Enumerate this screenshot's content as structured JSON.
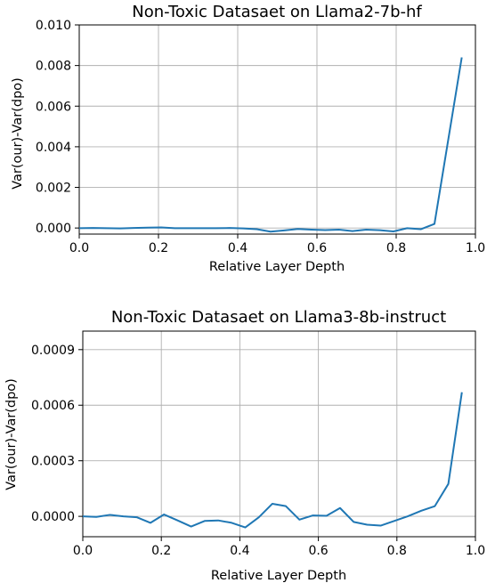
{
  "chart_data": [
    {
      "type": "line",
      "title": "Non-Toxic Datasaet on Llama2-7b-hf",
      "xlabel": "Relative Layer Depth",
      "ylabel": "Var(our)-Var(dpo)",
      "xlim": [
        0.0,
        1.0
      ],
      "ylim": [
        -0.0003,
        0.01
      ],
      "xticks": [
        0.0,
        0.2,
        0.4,
        0.6,
        0.8,
        1.0
      ],
      "xtick_labels": [
        "0.0",
        "0.2",
        "0.4",
        "0.6",
        "0.8",
        "1.0"
      ],
      "yticks": [
        0.0,
        0.002,
        0.004,
        0.006,
        0.008,
        0.01
      ],
      "ytick_labels": [
        "0.000",
        "0.002",
        "0.004",
        "0.006",
        "0.008",
        "0.010"
      ],
      "grid": true,
      "color": "#1f77b4",
      "series": [
        {
          "x": [
            0.0,
            0.0345,
            0.069,
            0.1034,
            0.1379,
            0.1724,
            0.2069,
            0.2414,
            0.2759,
            0.3103,
            0.3448,
            0.3793,
            0.4138,
            0.4483,
            0.4828,
            0.5172,
            0.5517,
            0.5862,
            0.6207,
            0.6552,
            0.6897,
            0.7241,
            0.7586,
            0.7931,
            0.8276,
            0.8621,
            0.8966,
            0.931,
            0.9655
          ],
          "values": [
            -1e-05,
            0.0,
            -1e-05,
            -2e-05,
            0.0,
            2e-05,
            3e-05,
            -1e-05,
            -1e-05,
            -1e-05,
            -1e-05,
            0.0,
            -2e-05,
            -6e-05,
            -0.00018,
            -0.00012,
            -5e-05,
            -8e-05,
            -0.0001,
            -8e-05,
            -0.00015,
            -8e-05,
            -0.00011,
            -0.00017,
            -1e-05,
            -6e-05,
            0.0002,
            0.0043,
            0.0084
          ]
        }
      ]
    },
    {
      "type": "line",
      "title": "Non-Toxic Datasaet on Llama3-8b-instruct",
      "xlabel": "Relative Layer Depth",
      "ylabel": "Var(our)-Var(dpo)",
      "xlim": [
        0.0,
        1.0
      ],
      "ylim": [
        -0.00011,
        0.001
      ],
      "xticks": [
        0.0,
        0.2,
        0.4,
        0.6,
        0.8,
        1.0
      ],
      "xtick_labels": [
        "0.0",
        "0.2",
        "0.4",
        "0.6",
        "0.8",
        "1.0"
      ],
      "yticks": [
        0.0,
        0.0003,
        0.0006,
        0.0009
      ],
      "ytick_labels": [
        "0.0000",
        "0.0003",
        "0.0006",
        "0.0009"
      ],
      "grid": true,
      "color": "#1f77b4",
      "series": [
        {
          "x": [
            0.0,
            0.0345,
            0.069,
            0.1034,
            0.1379,
            0.1724,
            0.2069,
            0.2414,
            0.2759,
            0.3103,
            0.3448,
            0.3793,
            0.4138,
            0.4483,
            0.4828,
            0.5172,
            0.5517,
            0.5862,
            0.6207,
            0.6552,
            0.6897,
            0.7241,
            0.7586,
            0.7931,
            0.8276,
            0.8621,
            0.8966,
            0.931,
            0.9655
          ],
          "values": [
            0.0,
            -3e-06,
            8e-06,
            0.0,
            -5e-06,
            -3.5e-05,
            1e-05,
            -2.2e-05,
            -5.5e-05,
            -2.5e-05,
            -2.2e-05,
            -3.5e-05,
            -6e-05,
            -5e-06,
            6.8e-05,
            5.5e-05,
            -1.8e-05,
            5e-06,
            3e-06,
            4.5e-05,
            -3e-05,
            -4.5e-05,
            -5e-05,
            -2.5e-05,
            0.0,
            3e-05,
            5.5e-05,
            0.000175,
            0.00067
          ]
        }
      ]
    }
  ]
}
